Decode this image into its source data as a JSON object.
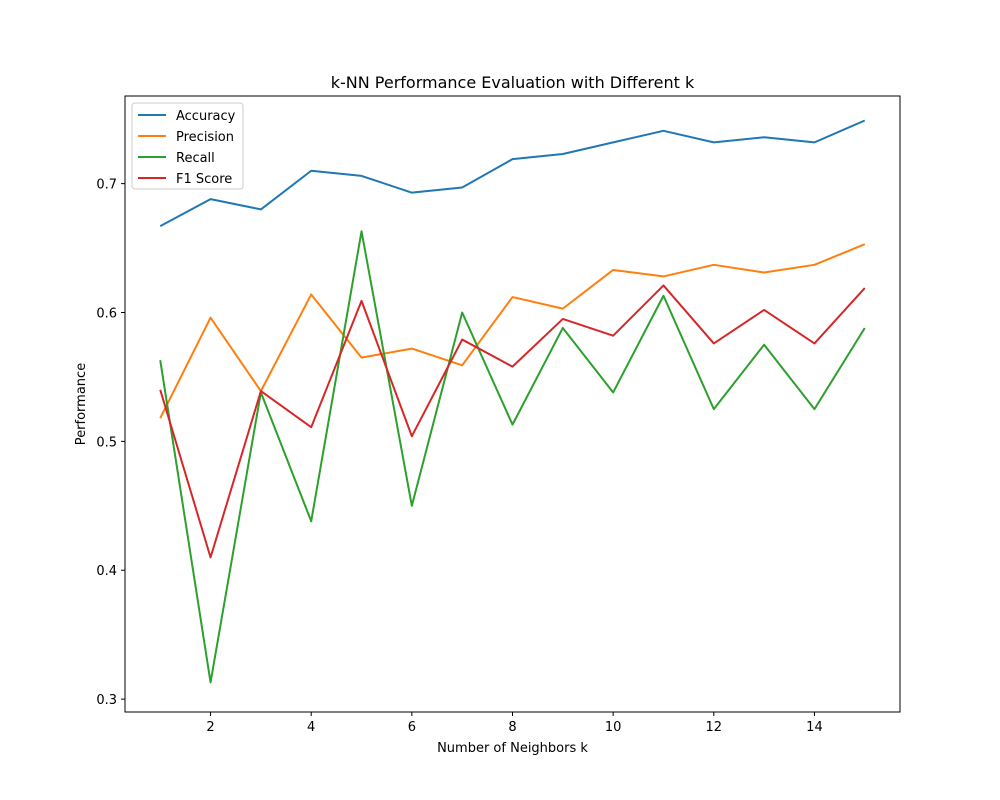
{
  "chart_data": {
    "type": "line",
    "title": "k-NN Performance Evaluation with Different k",
    "xlabel": "Number of Neighbors k",
    "ylabel": "Performance",
    "xlim": [
      0.3,
      15.7
    ],
    "ylim": [
      0.29,
      0.768
    ],
    "xticks": [
      2,
      4,
      6,
      8,
      10,
      12,
      14
    ],
    "yticks": [
      0.3,
      0.4,
      0.5,
      0.6,
      0.7
    ],
    "grid": false,
    "legend_position": "upper left",
    "x": [
      1,
      2,
      3,
      4,
      5,
      6,
      7,
      8,
      9,
      10,
      11,
      12,
      13,
      14,
      15
    ],
    "series": [
      {
        "name": "Accuracy",
        "color": "#1f77b4",
        "values": [
          0.667,
          0.688,
          0.68,
          0.71,
          0.706,
          0.693,
          0.697,
          0.719,
          0.723,
          0.732,
          0.741,
          0.732,
          0.736,
          0.732,
          0.749
        ]
      },
      {
        "name": "Precision",
        "color": "#ff7f0e",
        "values": [
          0.518,
          0.596,
          0.539,
          0.614,
          0.565,
          0.572,
          0.559,
          0.612,
          0.603,
          0.633,
          0.628,
          0.637,
          0.631,
          0.637,
          0.653
        ]
      },
      {
        "name": "Recall",
        "color": "#2ca02c",
        "values": [
          0.563,
          0.313,
          0.538,
          0.438,
          0.663,
          0.45,
          0.6,
          0.513,
          0.588,
          0.538,
          0.613,
          0.525,
          0.575,
          0.525,
          0.588
        ]
      },
      {
        "name": "F1 Score",
        "color": "#d62728",
        "values": [
          0.54,
          0.41,
          0.539,
          0.511,
          0.609,
          0.504,
          0.579,
          0.558,
          0.595,
          0.582,
          0.621,
          0.576,
          0.602,
          0.576,
          0.619
        ]
      }
    ]
  }
}
